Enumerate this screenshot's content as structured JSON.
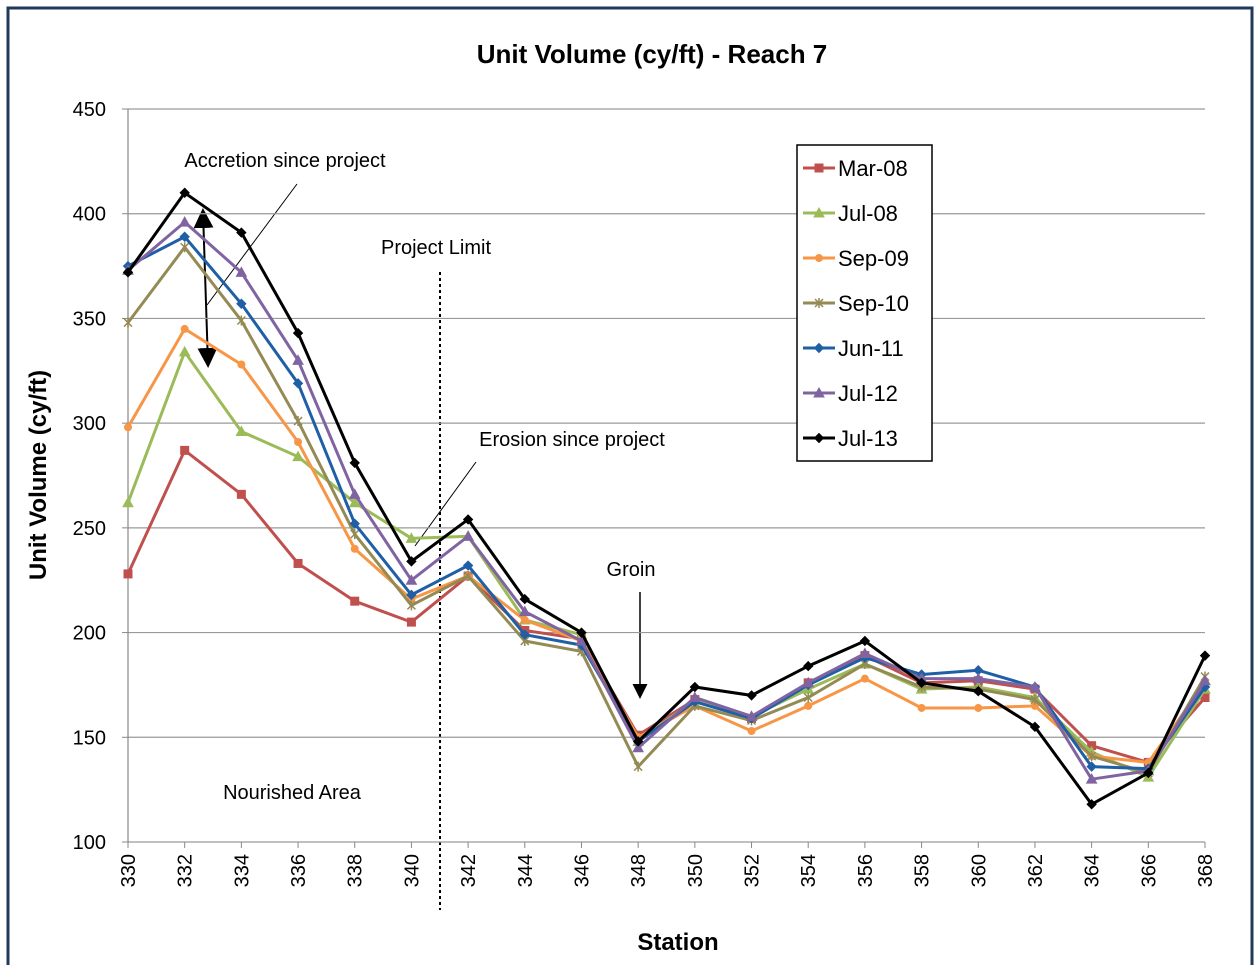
{
  "chart_data": {
    "type": "line",
    "title": "Unit Volume (cy/ft) - Reach 7",
    "x_label": "Station",
    "y_label": "Unit Volume  (cy/ft)",
    "x": [
      330,
      332,
      334,
      336,
      338,
      340,
      342,
      344,
      346,
      348,
      350,
      352,
      354,
      356,
      358,
      360,
      362,
      364,
      366,
      368
    ],
    "xlim": [
      330,
      368
    ],
    "xticks": [
      330,
      332,
      334,
      336,
      338,
      340,
      342,
      344,
      346,
      348,
      350,
      352,
      354,
      356,
      358,
      360,
      362,
      364,
      366,
      368
    ],
    "ylim": [
      100,
      450
    ],
    "yticks": [
      100,
      150,
      200,
      250,
      300,
      350,
      400,
      450
    ],
    "grid": true,
    "legend": "upper right",
    "annotations": [
      "Accretion since project",
      "Project Limit",
      "Erosion since project",
      "Groin",
      "Nourished Area"
    ],
    "series": [
      {
        "name": "Mar-08",
        "color": "#c0504d",
        "marker": "square",
        "values": [
          228,
          287,
          266,
          233,
          215,
          205,
          227,
          201,
          197,
          151,
          168,
          159,
          176,
          189,
          176,
          177,
          173,
          146,
          138,
          169
        ]
      },
      {
        "name": "Jul-08",
        "color": "#9bbb59",
        "marker": "triangle",
        "values": [
          262,
          334,
          296,
          284,
          262,
          245,
          246,
          206,
          199,
          148,
          168,
          160,
          173,
          185,
          173,
          174,
          169,
          143,
          131,
          173
        ]
      },
      {
        "name": "Sep-09",
        "color": "#f79646",
        "marker": "circle",
        "values": [
          298,
          345,
          328,
          291,
          240,
          216,
          227,
          206,
          196,
          150,
          165,
          153,
          165,
          178,
          164,
          164,
          165,
          141,
          138,
          176
        ]
      },
      {
        "name": "Sep-10",
        "color": "#948a54",
        "marker": "cross",
        "values": [
          348,
          384,
          349,
          301,
          247,
          213,
          227,
          196,
          191,
          136,
          165,
          158,
          169,
          185,
          174,
          173,
          168,
          141,
          133,
          179
        ]
      },
      {
        "name": "Jun-11",
        "color": "#1f5fa6",
        "marker": "diamond",
        "values": [
          375,
          389,
          357,
          319,
          252,
          218,
          232,
          199,
          194,
          148,
          167,
          159,
          175,
          188,
          180,
          182,
          174,
          136,
          135,
          174
        ]
      },
      {
        "name": "Jul-12",
        "color": "#8064a2",
        "marker": "triangle",
        "values": [
          373,
          396,
          372,
          330,
          266,
          225,
          246,
          210,
          196,
          145,
          169,
          160,
          176,
          190,
          178,
          178,
          174,
          130,
          134,
          177
        ]
      },
      {
        "name": "Jul-13",
        "color": "#000000",
        "marker": "diamond",
        "values": [
          372,
          410,
          391,
          343,
          281,
          234,
          254,
          216,
          200,
          148,
          174,
          170,
          184,
          196,
          176,
          172,
          155,
          118,
          133,
          189
        ]
      }
    ]
  }
}
